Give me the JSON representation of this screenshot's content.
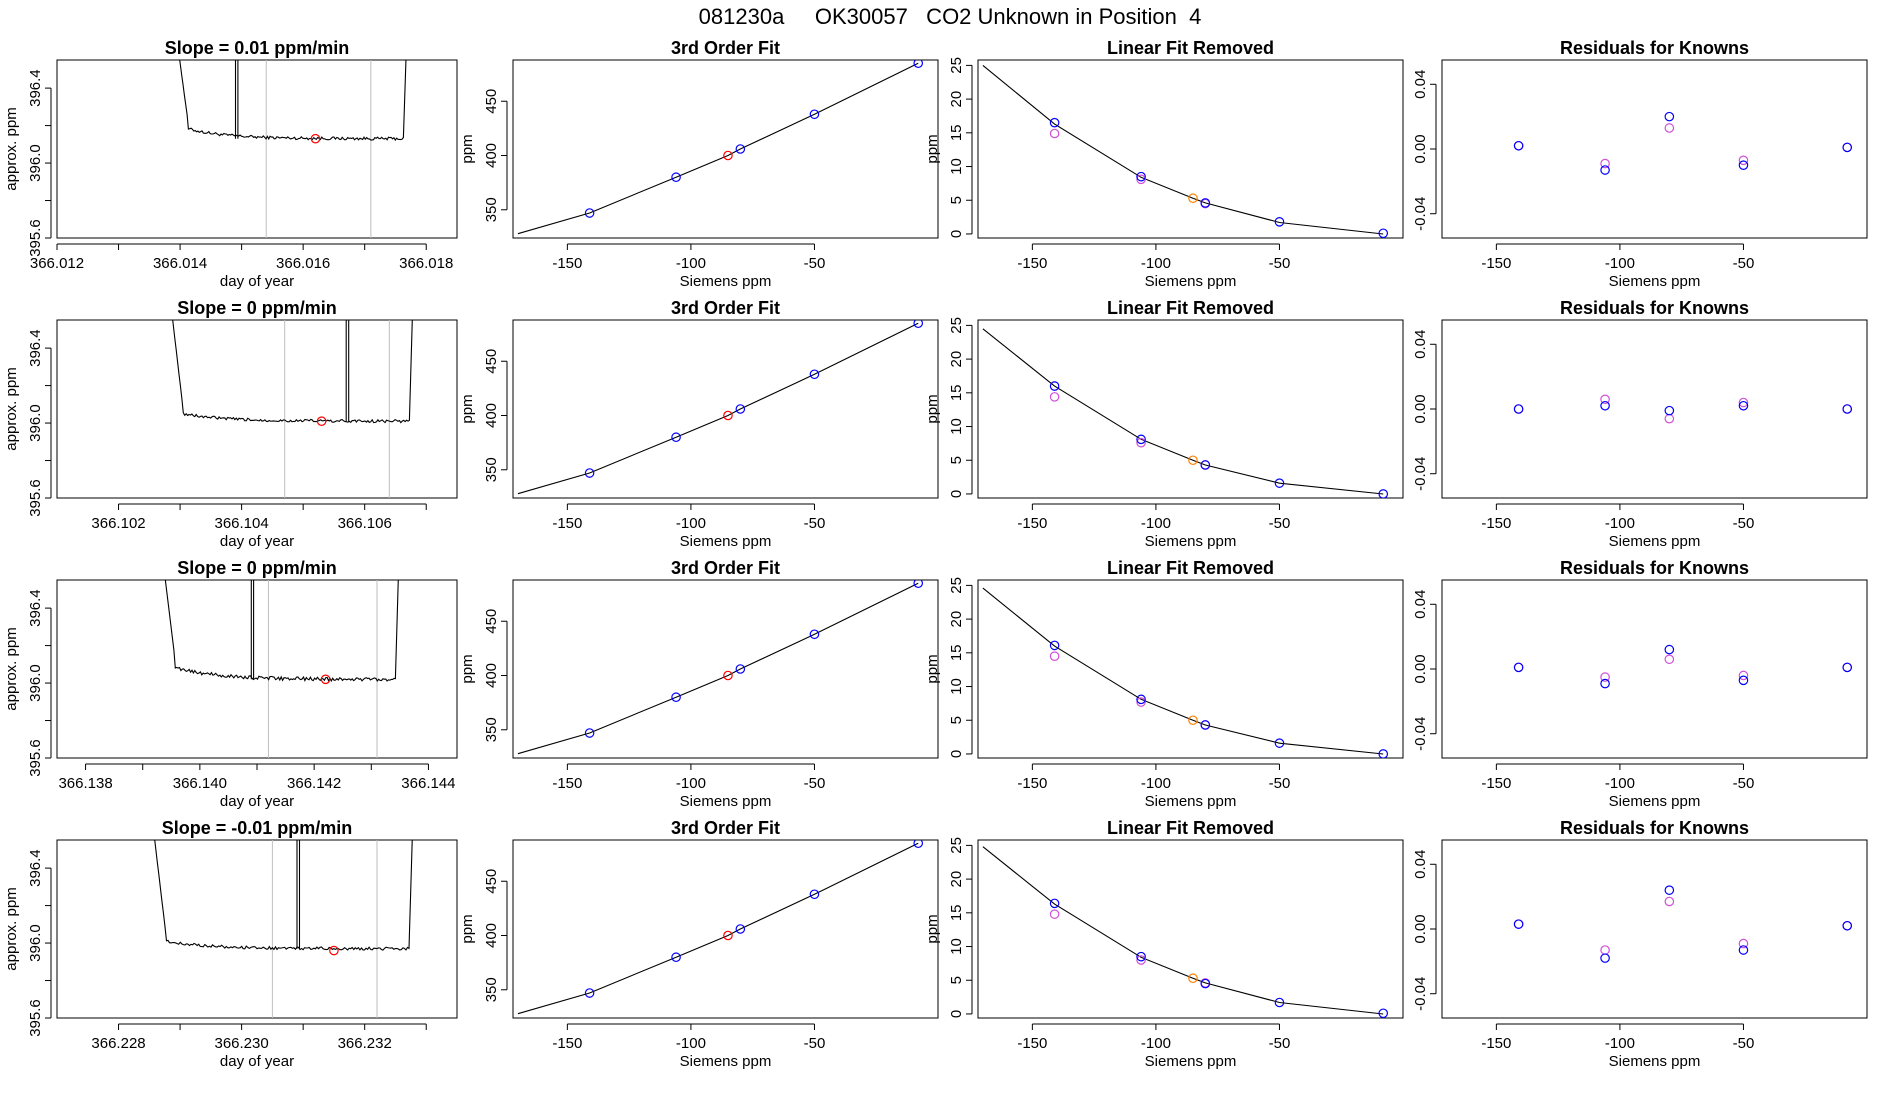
{
  "figure": {
    "title": "081230a     OK30057   CO2 Unknown in Position  4"
  },
  "colors": {
    "known": "#0000ff",
    "unknown": "#ff0000",
    "known_alt": "#d24fd7",
    "unknown_alt": "#ff8000",
    "trace": "#000000",
    "vline": "#bebebe"
  },
  "chart_data": [
    {
      "type": "line",
      "panel": "raw",
      "row": 1,
      "title": "Slope =  0.01  ppm/min",
      "xlabel": "day of year",
      "ylabel": "approx. ppm",
      "xlim": [
        366.012,
        366.0185
      ],
      "ylim": [
        395.6,
        396.55
      ],
      "xticks": [
        366.012,
        366.013,
        366.014,
        366.015,
        366.016,
        366.017,
        366.018
      ],
      "xtick_labels": [
        "366.012",
        "",
        "366.014",
        "",
        "366.016",
        "",
        "366.018"
      ],
      "yticks": [
        395.6,
        395.8,
        396.0,
        396.2,
        396.4
      ],
      "ytick_labels": [
        "395.6",
        "",
        "396.0",
        "",
        "396.4"
      ],
      "vlines": [
        366.0154,
        366.0171
      ],
      "trace": {
        "start": 366.0138,
        "end": 366.0177,
        "start_level": 396.21,
        "plateau": 396.13,
        "noise": 0.008
      },
      "spike": {
        "x": 366.0149,
        "width": 4e-05
      },
      "marker": {
        "x": 366.0162,
        "y": 396.13
      }
    },
    {
      "type": "scatter",
      "panel": "fit3",
      "row": 1,
      "title": "3rd Order Fit",
      "xlabel": "Siemens ppm",
      "ylabel": "ppm",
      "xlim": [
        -172,
        0
      ],
      "ylim": [
        324,
        488
      ],
      "xticks": [
        -150,
        -100,
        -50
      ],
      "xtick_labels": [
        "-150",
        "-100",
        "-50"
      ],
      "yticks": [
        350,
        400,
        450
      ],
      "ytick_labels": [
        "350",
        "400",
        "450"
      ],
      "curve": {
        "x": [
          -170,
          -141,
          -106,
          -85,
          -80,
          -50,
          -8
        ],
        "y": [
          328,
          347,
          380,
          400,
          406,
          438,
          485
        ]
      },
      "knowns": {
        "x": [
          -141,
          -106,
          -80,
          -50,
          -8
        ],
        "y": [
          347,
          380,
          406,
          438,
          485
        ]
      },
      "unknown": {
        "x": -85,
        "y": 400
      }
    },
    {
      "type": "scatter",
      "panel": "linfit",
      "row": 1,
      "title": "Linear Fit Removed",
      "xlabel": "Siemens ppm",
      "ylabel": "ppm",
      "xlim": [
        -172,
        0
      ],
      "ylim": [
        -0.6,
        25.8
      ],
      "xticks": [
        -150,
        -100,
        -50
      ],
      "xtick_labels": [
        "-150",
        "-100",
        "-50"
      ],
      "yticks": [
        0,
        5,
        10,
        15,
        20,
        25
      ],
      "ytick_labels": [
        "0",
        "5",
        "10",
        "15",
        "20",
        "25"
      ],
      "curve": {
        "x": [
          -170,
          -141,
          -106,
          -85,
          -80,
          -50,
          -8
        ],
        "y": [
          25.0,
          16.3,
          8.4,
          5.3,
          4.6,
          1.7,
          0.0
        ]
      },
      "knowns": {
        "x": [
          -141,
          -106,
          -80,
          -50,
          -8
        ],
        "y": [
          16.5,
          8.5,
          4.6,
          1.8,
          0.1
        ]
      },
      "knowns_alt": {
        "x": [
          -141,
          -106,
          -80
        ],
        "y": [
          14.9,
          8.1,
          4.5
        ]
      },
      "unknown": {
        "x": -85,
        "y": 5.3
      }
    },
    {
      "type": "scatter",
      "panel": "resid",
      "row": 1,
      "title": "Residuals for Knowns",
      "xlabel": "Siemens ppm",
      "ylabel": "",
      "xlim": [
        -172,
        0
      ],
      "ylim": [
        -0.055,
        0.055
      ],
      "xticks": [
        -150,
        -100,
        -50
      ],
      "xtick_labels": [
        "-150",
        "-100",
        "-50"
      ],
      "yticks": [
        -0.04,
        0.0,
        0.04
      ],
      "ytick_labels": [
        "-0.04",
        "0.00",
        "0.04"
      ],
      "knowns": {
        "x": [
          -141,
          -106,
          -80,
          -50,
          -8
        ],
        "y": [
          0.002,
          -0.013,
          0.02,
          -0.01,
          0.001
        ]
      },
      "knowns_alt": {
        "x": [
          -141,
          -106,
          -80,
          -50,
          -8
        ],
        "y": [
          0.002,
          -0.009,
          0.013,
          -0.007,
          0.001
        ]
      }
    },
    {
      "type": "line",
      "panel": "raw",
      "row": 2,
      "title": "Slope =  0  ppm/min",
      "xlabel": "day of year",
      "ylabel": "approx. ppm",
      "xlim": [
        366.101,
        366.1075
      ],
      "ylim": [
        395.6,
        396.55
      ],
      "xticks": [
        366.102,
        366.103,
        366.104,
        366.105,
        366.106,
        366.107
      ],
      "xtick_labels": [
        "366.102",
        "",
        "366.104",
        "",
        "366.106",
        ""
      ],
      "yticks": [
        395.6,
        395.8,
        396.0,
        396.2,
        396.4
      ],
      "ytick_labels": [
        "395.6",
        "",
        "396.0",
        "",
        "396.4"
      ],
      "vlines": [
        366.1047,
        366.1064
      ],
      "trace": {
        "start": 366.1027,
        "end": 366.1068,
        "start_level": 396.07,
        "plateau": 396.01,
        "noise": 0.008
      },
      "spike": {
        "x": 366.1057,
        "width": 4e-05
      },
      "marker": {
        "x": 366.1053,
        "y": 396.01
      }
    },
    {
      "type": "scatter",
      "panel": "fit3",
      "row": 2,
      "title": "3rd Order Fit",
      "xlabel": "Siemens ppm",
      "ylabel": "ppm",
      "xlim": [
        -172,
        0
      ],
      "ylim": [
        324,
        488
      ],
      "xticks": [
        -150,
        -100,
        -50
      ],
      "xtick_labels": [
        "-150",
        "-100",
        "-50"
      ],
      "yticks": [
        350,
        400,
        450
      ],
      "ytick_labels": [
        "350",
        "400",
        "450"
      ],
      "curve": {
        "x": [
          -170,
          -141,
          -106,
          -85,
          -80,
          -50,
          -8
        ],
        "y": [
          328,
          347,
          380,
          400,
          406,
          438,
          485
        ]
      },
      "knowns": {
        "x": [
          -141,
          -106,
          -80,
          -50,
          -8
        ],
        "y": [
          347,
          380,
          406,
          438,
          485
        ]
      },
      "unknown": {
        "x": -85,
        "y": 400
      }
    },
    {
      "type": "scatter",
      "panel": "linfit",
      "row": 2,
      "title": "Linear Fit Removed",
      "xlabel": "Siemens ppm",
      "ylabel": "ppm",
      "xlim": [
        -172,
        0
      ],
      "ylim": [
        -0.6,
        25.8
      ],
      "xticks": [
        -150,
        -100,
        -50
      ],
      "xtick_labels": [
        "-150",
        "-100",
        "-50"
      ],
      "yticks": [
        0,
        5,
        10,
        15,
        20,
        25
      ],
      "ytick_labels": [
        "0",
        "5",
        "10",
        "15",
        "20",
        "25"
      ],
      "curve": {
        "x": [
          -170,
          -141,
          -106,
          -85,
          -80,
          -50,
          -8
        ],
        "y": [
          24.5,
          16.0,
          8.1,
          5.0,
          4.3,
          1.6,
          0.0
        ]
      },
      "knowns": {
        "x": [
          -141,
          -106,
          -80,
          -50,
          -8
        ],
        "y": [
          16.0,
          8.1,
          4.3,
          1.6,
          0.0
        ]
      },
      "knowns_alt": {
        "x": [
          -141,
          -106,
          -80
        ],
        "y": [
          14.4,
          7.6,
          4.3
        ]
      },
      "unknown": {
        "x": -85,
        "y": 5.0
      }
    },
    {
      "type": "scatter",
      "panel": "resid",
      "row": 2,
      "title": "Residuals for Knowns",
      "xlabel": "Siemens ppm",
      "ylabel": "",
      "xlim": [
        -172,
        0
      ],
      "ylim": [
        -0.055,
        0.055
      ],
      "xticks": [
        -150,
        -100,
        -50
      ],
      "xtick_labels": [
        "-150",
        "-100",
        "-50"
      ],
      "yticks": [
        -0.04,
        0.0,
        0.04
      ],
      "ytick_labels": [
        "-0.04",
        "0.00",
        "0.04"
      ],
      "knowns": {
        "x": [
          -141,
          -106,
          -80,
          -50,
          -8
        ],
        "y": [
          0.0,
          0.002,
          -0.001,
          0.002,
          0.0
        ]
      },
      "knowns_alt": {
        "x": [
          -141,
          -106,
          -80,
          -50,
          -8
        ],
        "y": [
          0.0,
          0.006,
          -0.006,
          0.004,
          0.0
        ]
      }
    },
    {
      "type": "line",
      "panel": "raw",
      "row": 3,
      "title": "Slope =  0  ppm/min",
      "xlabel": "day of year",
      "ylabel": "approx. ppm",
      "xlim": [
        366.1375,
        366.1445
      ],
      "ylim": [
        395.6,
        396.55
      ],
      "xticks": [
        366.138,
        366.139,
        366.14,
        366.141,
        366.142,
        366.143,
        366.144
      ],
      "xtick_labels": [
        "366.138",
        "",
        "366.140",
        "",
        "366.142",
        "",
        "366.144"
      ],
      "yticks": [
        395.6,
        395.8,
        396.0,
        396.2,
        396.4
      ],
      "ytick_labels": [
        "395.6",
        "",
        "396.0",
        "",
        "396.4"
      ],
      "vlines": [
        366.1412,
        366.1431
      ],
      "trace": {
        "start": 366.1392,
        "end": 366.1435,
        "start_level": 396.12,
        "plateau": 396.02,
        "noise": 0.01
      },
      "spike": {
        "x": 366.1409,
        "width": 4e-05
      },
      "marker": {
        "x": 366.1422,
        "y": 396.02
      }
    },
    {
      "type": "scatter",
      "panel": "fit3",
      "row": 3,
      "title": "3rd Order Fit",
      "xlabel": "Siemens ppm",
      "ylabel": "ppm",
      "xlim": [
        -172,
        0
      ],
      "ylim": [
        324,
        488
      ],
      "xticks": [
        -150,
        -100,
        -50
      ],
      "xtick_labels": [
        "-150",
        "-100",
        "-50"
      ],
      "yticks": [
        350,
        400,
        450
      ],
      "ytick_labels": [
        "350",
        "400",
        "450"
      ],
      "curve": {
        "x": [
          -170,
          -141,
          -106,
          -85,
          -80,
          -50,
          -8
        ],
        "y": [
          328,
          347,
          380,
          400,
          406,
          438,
          485
        ]
      },
      "knowns": {
        "x": [
          -141,
          -106,
          -80,
          -50,
          -8
        ],
        "y": [
          347,
          380,
          406,
          438,
          485
        ]
      },
      "unknown": {
        "x": -85,
        "y": 400
      }
    },
    {
      "type": "scatter",
      "panel": "linfit",
      "row": 3,
      "title": "Linear Fit Removed",
      "xlabel": "Siemens ppm",
      "ylabel": "ppm",
      "xlim": [
        -172,
        0
      ],
      "ylim": [
        -0.6,
        25.8
      ],
      "xticks": [
        -150,
        -100,
        -50
      ],
      "xtick_labels": [
        "-150",
        "-100",
        "-50"
      ],
      "yticks": [
        0,
        5,
        10,
        15,
        20,
        25
      ],
      "ytick_labels": [
        "0",
        "5",
        "10",
        "15",
        "20",
        "25"
      ],
      "curve": {
        "x": [
          -170,
          -141,
          -106,
          -85,
          -80,
          -50,
          -8
        ],
        "y": [
          24.6,
          16.0,
          8.1,
          5.0,
          4.3,
          1.6,
          0.0
        ]
      },
      "knowns": {
        "x": [
          -141,
          -106,
          -80,
          -50,
          -8
        ],
        "y": [
          16.1,
          8.1,
          4.3,
          1.6,
          0.0
        ]
      },
      "knowns_alt": {
        "x": [
          -141,
          -106,
          -80
        ],
        "y": [
          14.5,
          7.7,
          4.3
        ]
      },
      "unknown": {
        "x": -85,
        "y": 5.0
      }
    },
    {
      "type": "scatter",
      "panel": "resid",
      "row": 3,
      "title": "Residuals for Knowns",
      "xlabel": "Siemens ppm",
      "ylabel": "",
      "xlim": [
        -172,
        0
      ],
      "ylim": [
        -0.055,
        0.055
      ],
      "xticks": [
        -150,
        -100,
        -50
      ],
      "xtick_labels": [
        "-150",
        "-100",
        "-50"
      ],
      "yticks": [
        -0.04,
        0.0,
        0.04
      ],
      "ytick_labels": [
        "-0.04",
        "0.00",
        "0.04"
      ],
      "knowns": {
        "x": [
          -141,
          -106,
          -80,
          -50,
          -8
        ],
        "y": [
          0.001,
          -0.009,
          0.012,
          -0.007,
          0.001
        ]
      },
      "knowns_alt": {
        "x": [
          -141,
          -106,
          -80,
          -50,
          -8
        ],
        "y": [
          0.001,
          -0.005,
          0.006,
          -0.004,
          0.001
        ]
      }
    },
    {
      "type": "line",
      "panel": "raw",
      "row": 4,
      "title": "Slope =  -0.01  ppm/min",
      "xlabel": "day of year",
      "ylabel": "approx. ppm",
      "xlim": [
        366.227,
        366.2335
      ],
      "ylim": [
        395.6,
        396.55
      ],
      "xticks": [
        366.228,
        366.229,
        366.23,
        366.231,
        366.232,
        366.233
      ],
      "xtick_labels": [
        "366.228",
        "",
        "366.230",
        "",
        "366.232",
        ""
      ],
      "yticks": [
        395.6,
        395.8,
        396.0,
        396.2,
        396.4
      ],
      "ytick_labels": [
        "395.6",
        "",
        "396.0",
        "",
        "396.4"
      ],
      "vlines": [
        366.2305,
        366.2322
      ],
      "trace": {
        "start": 366.2284,
        "end": 366.2328,
        "start_level": 396.03,
        "plateau": 395.97,
        "noise": 0.008
      },
      "spike": {
        "x": 366.2309,
        "width": 4e-05
      },
      "marker": {
        "x": 366.2315,
        "y": 395.96
      }
    },
    {
      "type": "scatter",
      "panel": "fit3",
      "row": 4,
      "title": "3rd Order Fit",
      "xlabel": "Siemens ppm",
      "ylabel": "ppm",
      "xlim": [
        -172,
        0
      ],
      "ylim": [
        324,
        488
      ],
      "xticks": [
        -150,
        -100,
        -50
      ],
      "xtick_labels": [
        "-150",
        "-100",
        "-50"
      ],
      "yticks": [
        350,
        400,
        450
      ],
      "ytick_labels": [
        "350",
        "400",
        "450"
      ],
      "curve": {
        "x": [
          -170,
          -141,
          -106,
          -85,
          -80,
          -50,
          -8
        ],
        "y": [
          328,
          347,
          380,
          400,
          406,
          438,
          485
        ]
      },
      "knowns": {
        "x": [
          -141,
          -106,
          -80,
          -50,
          -8
        ],
        "y": [
          347,
          380,
          406,
          438,
          485
        ]
      },
      "unknown": {
        "x": -85,
        "y": 400
      }
    },
    {
      "type": "scatter",
      "panel": "linfit",
      "row": 4,
      "title": "Linear Fit Removed",
      "xlabel": "Siemens ppm",
      "ylabel": "ppm",
      "xlim": [
        -172,
        0
      ],
      "ylim": [
        -0.6,
        25.8
      ],
      "xticks": [
        -150,
        -100,
        -50
      ],
      "xtick_labels": [
        "-150",
        "-100",
        "-50"
      ],
      "yticks": [
        0,
        5,
        10,
        15,
        20,
        25
      ],
      "ytick_labels": [
        "0",
        "5",
        "10",
        "15",
        "20",
        "25"
      ],
      "curve": {
        "x": [
          -170,
          -141,
          -106,
          -85,
          -80,
          -50,
          -8
        ],
        "y": [
          24.8,
          16.3,
          8.4,
          5.3,
          4.6,
          1.7,
          0.0
        ]
      },
      "knowns": {
        "x": [
          -141,
          -106,
          -80,
          -50,
          -8
        ],
        "y": [
          16.4,
          8.5,
          4.5,
          1.7,
          0.1
        ]
      },
      "knowns_alt": {
        "x": [
          -141,
          -106,
          -80
        ],
        "y": [
          14.8,
          8.0,
          4.6
        ]
      },
      "unknown": {
        "x": -85,
        "y": 5.3
      }
    },
    {
      "type": "scatter",
      "panel": "resid",
      "row": 4,
      "title": "Residuals for Knowns",
      "xlabel": "Siemens ppm",
      "ylabel": "",
      "xlim": [
        -172,
        0
      ],
      "ylim": [
        -0.055,
        0.055
      ],
      "xticks": [
        -150,
        -100,
        -50
      ],
      "xtick_labels": [
        "-150",
        "-100",
        "-50"
      ],
      "yticks": [
        -0.04,
        0.0,
        0.04
      ],
      "ytick_labels": [
        "-0.04",
        "0.00",
        "0.04"
      ],
      "knowns": {
        "x": [
          -141,
          -106,
          -80,
          -50,
          -8
        ],
        "y": [
          0.003,
          -0.018,
          0.024,
          -0.013,
          0.002
        ]
      },
      "knowns_alt": {
        "x": [
          -141,
          -106,
          -80,
          -50,
          -8
        ],
        "y": [
          0.003,
          -0.013,
          0.017,
          -0.009,
          0.002
        ]
      }
    }
  ]
}
